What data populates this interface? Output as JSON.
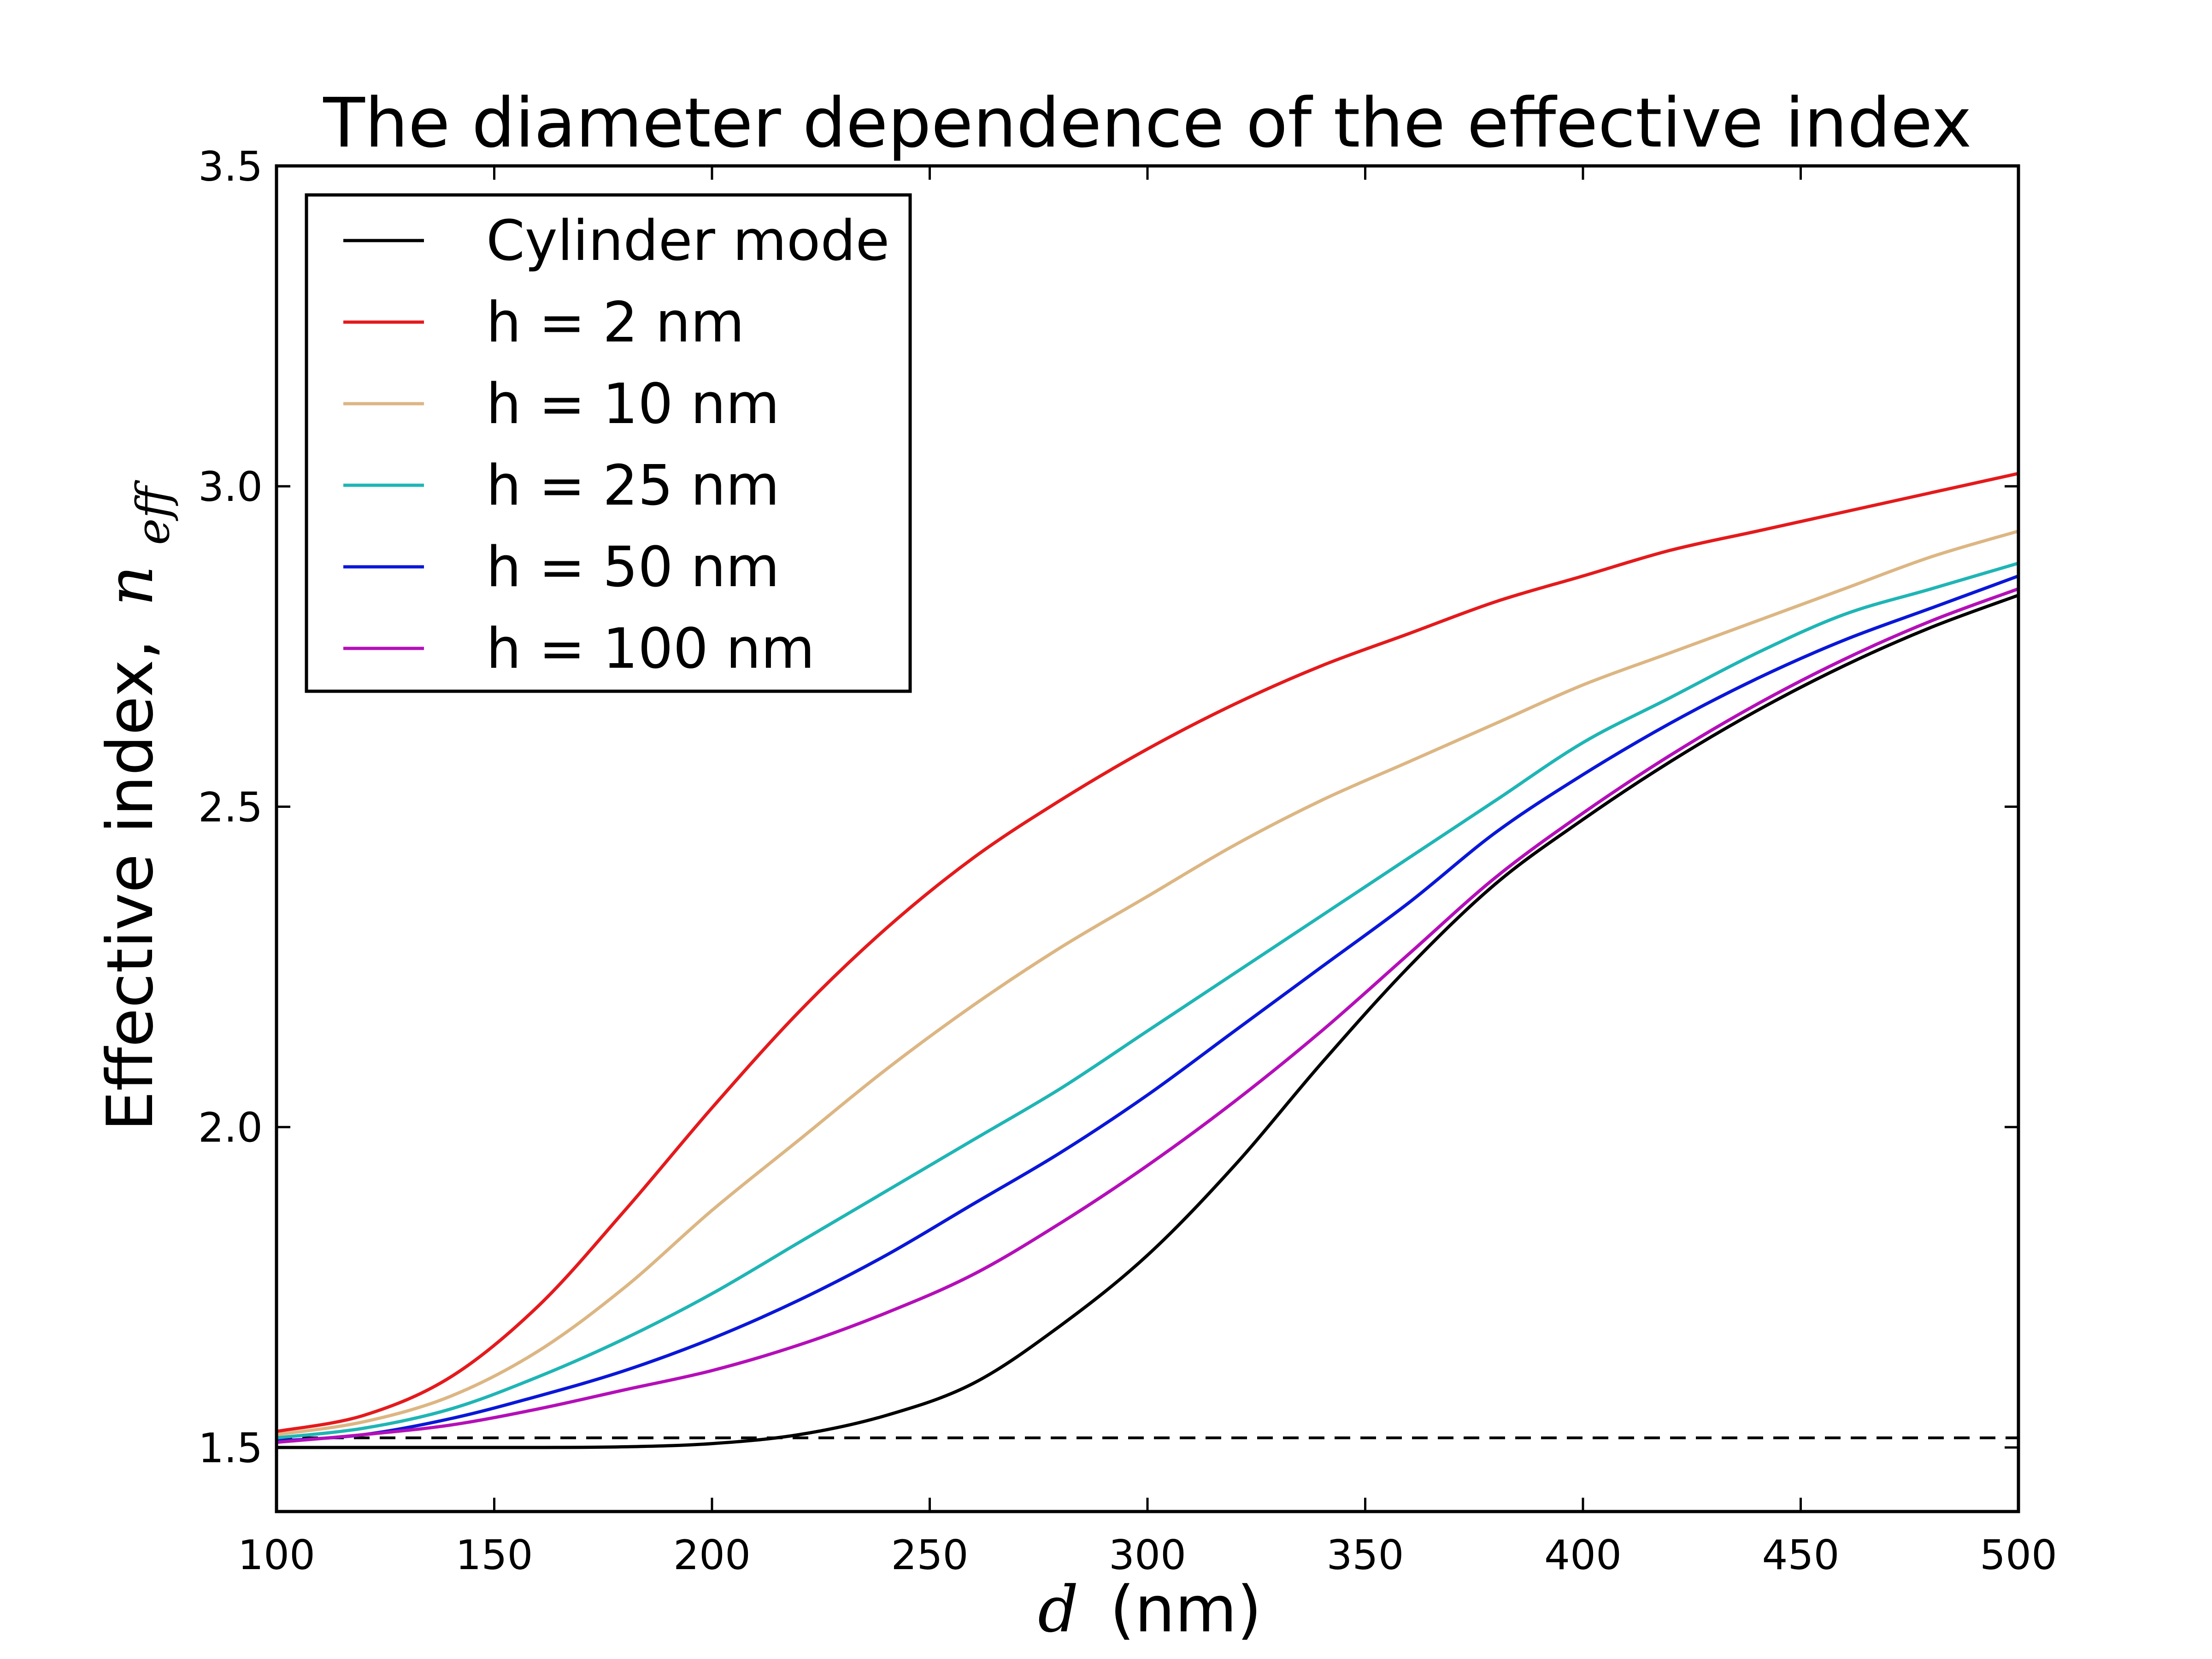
{
  "chart_data": {
    "type": "line",
    "title": "The diameter dependence of the effective index",
    "xlabel_symbol": "d",
    "xlabel_unit": "(nm)",
    "ylabel_text": "Effective index,",
    "ylabel_symbol": "n",
    "ylabel_subscript": "eff",
    "xlim": [
      100,
      500
    ],
    "ylim": [
      1.4,
      3.5
    ],
    "x_ticks": [
      100,
      150,
      200,
      250,
      300,
      350,
      400,
      450,
      500
    ],
    "x_tick_labels": [
      "100",
      "150",
      "200",
      "250",
      "300",
      "350",
      "400",
      "450",
      "500"
    ],
    "y_ticks": [
      1.5,
      2.0,
      2.5,
      3.0,
      3.5
    ],
    "y_tick_labels": [
      "1.5",
      "2.0",
      "2.5",
      "3.0",
      "3.5"
    ],
    "legend_position": "top-left",
    "reference_line": {
      "y": 1.515,
      "style": "dashed",
      "color": "#000000"
    },
    "x": [
      100,
      120,
      140,
      160,
      180,
      200,
      220,
      240,
      260,
      280,
      300,
      320,
      340,
      360,
      380,
      400,
      420,
      440,
      460,
      480,
      500
    ],
    "series": [
      {
        "name": "Cylinder mode",
        "label": "Cylinder mode",
        "color": "#000000",
        "values": [
          1.5,
          1.5,
          1.5,
          1.5,
          1.501,
          1.506,
          1.52,
          1.55,
          1.6,
          1.69,
          1.8,
          1.94,
          2.1,
          2.25,
          2.38,
          2.48,
          2.57,
          2.65,
          2.72,
          2.78,
          2.83
        ]
      },
      {
        "name": "h = 2 nm",
        "label": "h = 2 nm",
        "color": "#e41a1c",
        "values": [
          1.525,
          1.55,
          1.61,
          1.72,
          1.87,
          2.03,
          2.18,
          2.31,
          2.42,
          2.51,
          2.59,
          2.66,
          2.72,
          2.77,
          2.82,
          2.86,
          2.9,
          2.93,
          2.96,
          2.99,
          3.02
        ]
      },
      {
        "name": "h = 10 nm",
        "label": "h = 10 nm",
        "color": "#dcb683",
        "values": [
          1.52,
          1.54,
          1.58,
          1.65,
          1.75,
          1.87,
          1.98,
          2.09,
          2.19,
          2.28,
          2.36,
          2.44,
          2.51,
          2.57,
          2.63,
          2.69,
          2.74,
          2.79,
          2.84,
          2.89,
          2.93
        ]
      },
      {
        "name": "h = 25 nm",
        "label": "h = 25 nm",
        "color": "#1fb5b5",
        "values": [
          1.515,
          1.53,
          1.56,
          1.61,
          1.67,
          1.74,
          1.82,
          1.9,
          1.98,
          2.06,
          2.15,
          2.24,
          2.33,
          2.42,
          2.51,
          2.6,
          2.67,
          2.74,
          2.8,
          2.84,
          2.88
        ]
      },
      {
        "name": "h = 50 nm",
        "label": "h = 50 nm",
        "color": "#0a17d8",
        "values": [
          1.51,
          1.52,
          1.545,
          1.58,
          1.62,
          1.67,
          1.73,
          1.8,
          1.88,
          1.96,
          2.05,
          2.15,
          2.25,
          2.35,
          2.46,
          2.55,
          2.63,
          2.7,
          2.76,
          2.81,
          2.86
        ]
      },
      {
        "name": "h = 100 nm",
        "label": "h = 100 nm",
        "color": "#b40fb8",
        "values": [
          1.508,
          1.52,
          1.535,
          1.56,
          1.59,
          1.62,
          1.66,
          1.71,
          1.77,
          1.85,
          1.94,
          2.04,
          2.15,
          2.27,
          2.39,
          2.49,
          2.58,
          2.66,
          2.73,
          2.79,
          2.84
        ]
      }
    ]
  }
}
